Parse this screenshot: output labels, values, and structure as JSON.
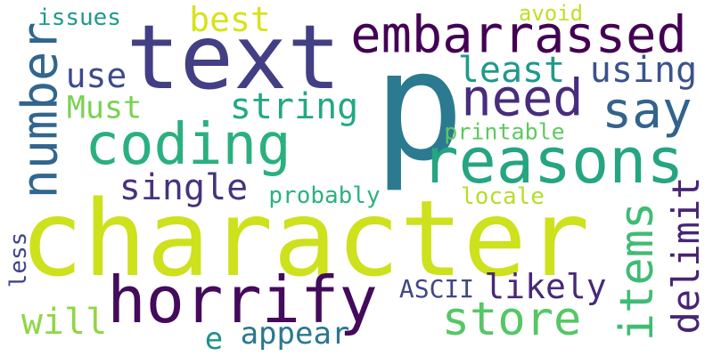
{
  "words": {
    "p": {
      "text": "p",
      "color": "#2c7a8f"
    },
    "character": {
      "text": "character",
      "color": "#cde11d"
    },
    "text": {
      "text": "text",
      "color": "#433f85"
    },
    "reasons": {
      "text": "reasons",
      "color": "#25a582"
    },
    "embarrassed": {
      "text": "embarrassed",
      "color": "#440154"
    },
    "horrify": {
      "text": "horrify",
      "color": "#440a5c"
    },
    "coding": {
      "text": "coding",
      "color": "#2ab07f"
    },
    "number": {
      "text": "number",
      "color": "#31668e"
    },
    "need": {
      "text": "need",
      "color": "#472d7b"
    },
    "say": {
      "text": "say",
      "color": "#33638d"
    },
    "store": {
      "text": "store",
      "color": "#56c667"
    },
    "items": {
      "text": "items",
      "color": "#3fbc73"
    },
    "delimit": {
      "text": "delimit",
      "color": "#482475"
    },
    "string": {
      "text": "string",
      "color": "#22a884"
    },
    "single": {
      "text": "single",
      "color": "#46337e"
    },
    "using": {
      "text": "using",
      "color": "#3b528b"
    },
    "least": {
      "text": "least",
      "color": "#1f9a8a"
    },
    "use": {
      "text": "use",
      "color": "#3e4a89"
    },
    "best": {
      "text": "best",
      "color": "#d8e219"
    },
    "Must": {
      "text": "Must",
      "color": "#7ad151"
    },
    "likely": {
      "text": "likely",
      "color": "#482878"
    },
    "will": {
      "text": "will",
      "color": "#8fd744"
    },
    "appear": {
      "text": "appear",
      "color": "#2a788e"
    },
    "e": {
      "text": "e",
      "color": "#21918c"
    },
    "ASCII": {
      "text": "ASCII",
      "color": "#404688"
    },
    "probably": {
      "text": "probably",
      "color": "#2db27d"
    },
    "locale": {
      "text": "locale",
      "color": "#b5de2b"
    },
    "printable": {
      "text": "printable",
      "color": "#5ec962"
    },
    "avoid": {
      "text": "avoid",
      "color": "#c2df23"
    },
    "issues": {
      "text": "issues",
      "color": "#1e9b8a"
    },
    "less": {
      "text": "less",
      "color": "#414487"
    }
  }
}
